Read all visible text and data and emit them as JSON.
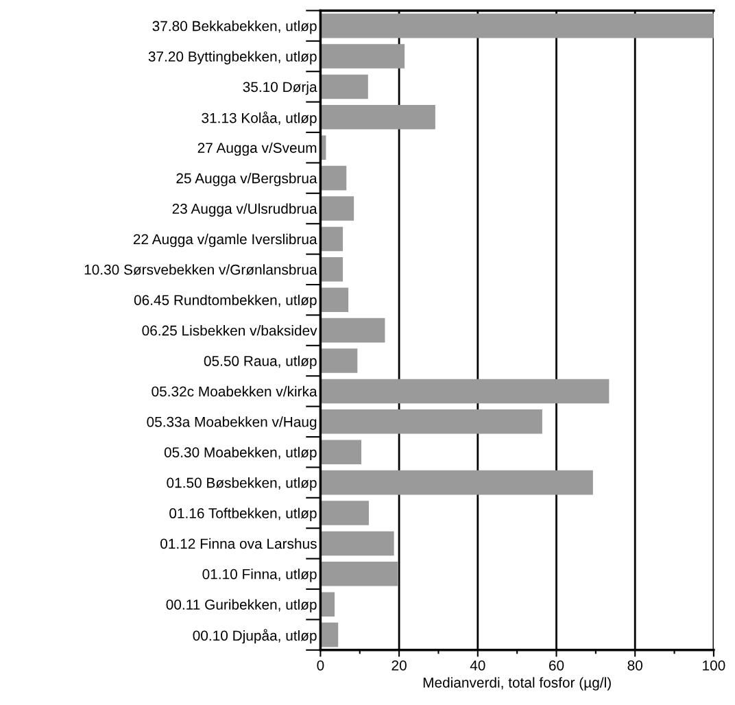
{
  "chart_data": {
    "type": "bar",
    "orientation": "horizontal",
    "xlabel": "Medianverdi, total fosfor (µg/l)",
    "categories": [
      "37.80 Bekkabekken, utløp",
      "37.20 Byttingbekken, utløp",
      "35.10 Dørja",
      "31.13 Kolåa, utløp",
      "27 Augga v/Sveum",
      "25 Augga v/Bergsbrua",
      "23 Augga v/Ulsrudbrua",
      "22 Augga v/gamle Iverslibrua",
      "10.30 Sørsvebekken v/Grønlansbrua",
      "06.45 Rundtombekken, utløp",
      "06.25 Lisbekken v/baksidev",
      "05.50 Raua, utløp",
      "05.32c Moabekken v/kirka",
      "05.33a Moabekken v/Haug",
      "05.30 Moabekken, utløp",
      "01.50 Bøsbekken, utløp",
      "01.16 Toftbekken, utløp",
      "01.12 Finna ova Larshus",
      "01.10 Finna, utløp",
      "00.11 Guribekken, utløp",
      "00.10 Djupåa, utløp"
    ],
    "values": [
      100,
      21.4,
      12.1,
      29.2,
      1.4,
      6.6,
      8.5,
      5.7,
      5.7,
      7.1,
      16.4,
      9.4,
      73.4,
      56.4,
      10.4,
      69.3,
      12.3,
      18.7,
      19.7,
      3.6,
      4.5
    ],
    "color": "#9a9a9a",
    "xlim": [
      0,
      100
    ],
    "xticks": [
      0,
      20,
      40,
      60,
      80,
      100
    ],
    "grid": "x"
  }
}
